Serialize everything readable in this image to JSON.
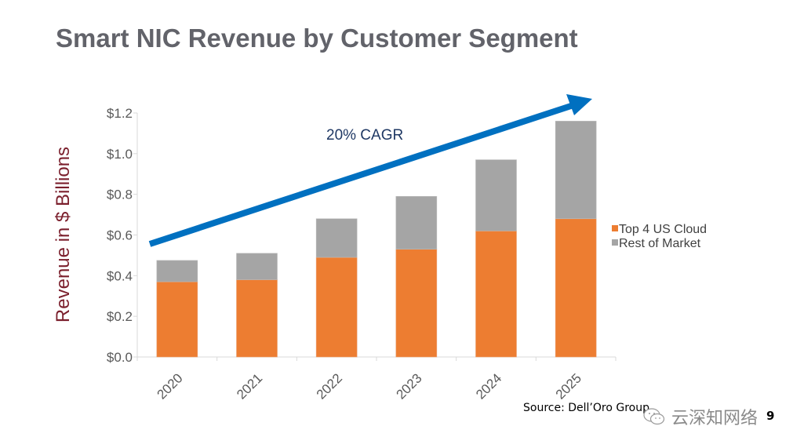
{
  "slide": {
    "title": "Smart NIC Revenue by Customer Segment",
    "source": "Source: Dell’Oro Group",
    "watermark": "云深知网络",
    "page_number": "9"
  },
  "chart_data": {
    "type": "bar",
    "stacked": true,
    "title": "Smart NIC Revenue by Customer Segment",
    "xlabel": "",
    "ylabel": "Revenue in $ Billions",
    "categories": [
      "2020",
      "2021",
      "2022",
      "2023",
      "2024",
      "2025"
    ],
    "series": [
      {
        "name": "Top 4 US Cloud",
        "color": "#ed7d31",
        "values": [
          0.37,
          0.38,
          0.49,
          0.53,
          0.62,
          0.68
        ]
      },
      {
        "name": "Rest of Market",
        "color": "#a5a5a5",
        "values": [
          0.105,
          0.13,
          0.19,
          0.26,
          0.35,
          0.48
        ]
      }
    ],
    "ylim": [
      0,
      1.2
    ],
    "yticks": [
      0.0,
      0.2,
      0.4,
      0.6,
      0.8,
      1.0,
      1.2
    ],
    "ytick_labels": [
      "$0.0",
      "$0.2",
      "$0.4",
      "$0.6",
      "$0.8",
      "$1.0",
      "$1.2"
    ],
    "grid": false,
    "legend": "right",
    "annotations": [
      {
        "text": "20% CAGR",
        "type": "trend-arrow",
        "color": "#0070c0",
        "from": {
          "x": "2020",
          "y": 0.55
        },
        "to": {
          "x": "2025",
          "y": 1.25
        }
      }
    ]
  }
}
